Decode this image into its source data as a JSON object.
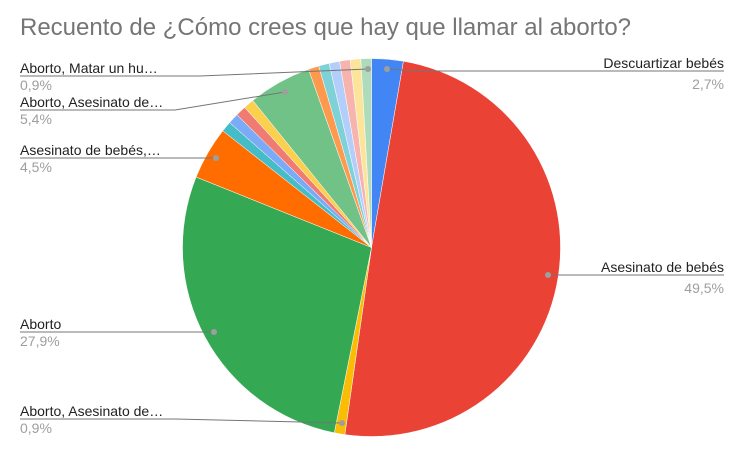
{
  "chart_data": {
    "type": "pie",
    "title": "Recuento de ¿Cómo crees que hay que llamar al aborto?",
    "legend_position": "labeled",
    "slices": [
      {
        "label": "Descuartizar bebés",
        "value": 2.7,
        "color": "#4285f4",
        "shown_label": "Descuartizar bebés",
        "shown_pct": "2,7%"
      },
      {
        "label": "Asesinato de bebés",
        "value": 49.5,
        "color": "#ea4335",
        "shown_label": "Asesinato de bebés",
        "shown_pct": "49,5%"
      },
      {
        "label": "Aborto, Asesinato de…",
        "value": 0.9,
        "color": "#fbbc04",
        "shown_label": "Aborto, Asesinato de…",
        "shown_pct": "0,9%"
      },
      {
        "label": "Aborto",
        "value": 27.9,
        "color": "#34a853",
        "shown_label": "Aborto",
        "shown_pct": "27,9%"
      },
      {
        "label": "Asesinato de bebés,…",
        "value": 4.5,
        "color": "#ff6d01",
        "shown_label": "Asesinato de bebés,…",
        "shown_pct": "4,5%"
      },
      {
        "label": "",
        "value": 0.9,
        "color": "#46bdc6"
      },
      {
        "label": "",
        "value": 0.9,
        "color": "#7baaf7"
      },
      {
        "label": "",
        "value": 0.9,
        "color": "#f07b72"
      },
      {
        "label": "",
        "value": 0.9,
        "color": "#fcd04f"
      },
      {
        "label": "Aborto, Asesinato de…",
        "value": 5.4,
        "color": "#71c287",
        "shown_label": "Aborto, Asesinato de…",
        "shown_pct": "5,4%"
      },
      {
        "label": "",
        "value": 0.9,
        "color": "#ff994d"
      },
      {
        "label": "",
        "value": 0.9,
        "color": "#7ed1d7"
      },
      {
        "label": "",
        "value": 0.9,
        "color": "#b3cefb"
      },
      {
        "label": "",
        "value": 0.9,
        "color": "#f7b4ae"
      },
      {
        "label": "",
        "value": 0.9,
        "color": "#fde49b"
      },
      {
        "label": "Aborto, Matar un hu…",
        "value": 0.9,
        "color": "#aedcba",
        "shown_label": "Aborto, Matar un hu…",
        "shown_pct": "0,9%"
      }
    ]
  },
  "labels": {
    "descuartizar": {
      "name": "Descuartizar bebés",
      "pct": "2,7%"
    },
    "asesinato": {
      "name": "Asesinato de bebés",
      "pct": "49,5%"
    },
    "aborto_asesinato_small": {
      "name": "Aborto, Asesinato de…",
      "pct": "0,9%"
    },
    "aborto": {
      "name": "Aborto",
      "pct": "27,9%"
    },
    "asesinato_coma": {
      "name": "Asesinato de bebés,…",
      "pct": "4,5%"
    },
    "aborto_asesinato_big": {
      "name": "Aborto, Asesinato de…",
      "pct": "5,4%"
    },
    "aborto_matar": {
      "name": "Aborto, Matar un hu…",
      "pct": "0,9%"
    }
  }
}
